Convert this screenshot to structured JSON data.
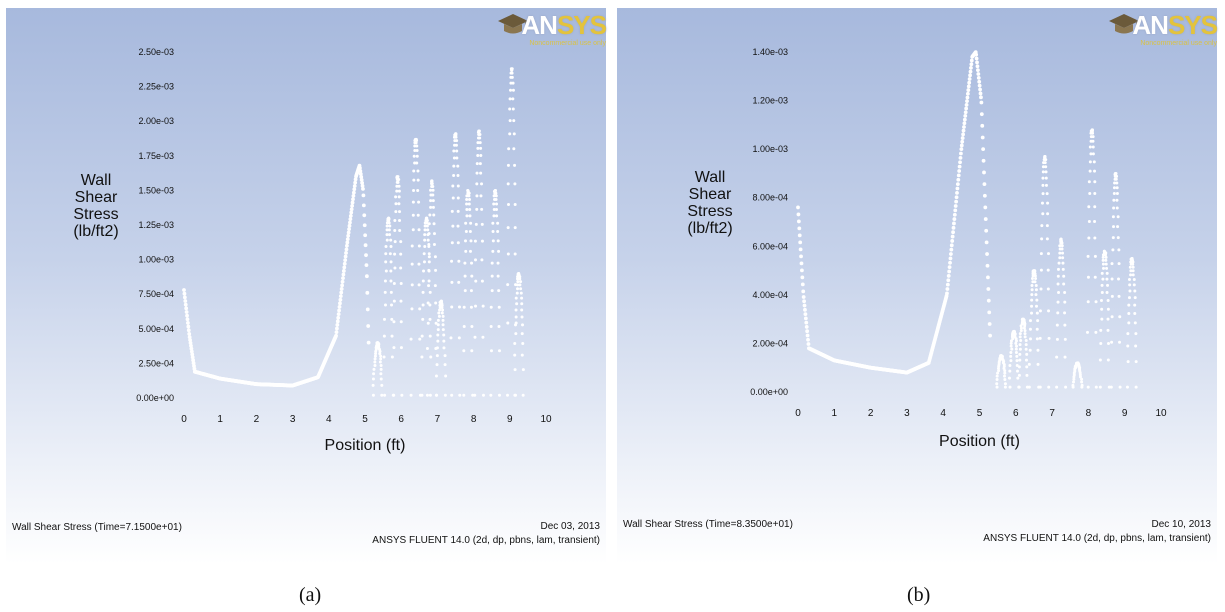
{
  "chart_data": [
    {
      "type": "scatter",
      "label": "(a)",
      "ylabel": "Wall\nShear\nStress\n(lb/ft2)",
      "xlabel": "Position (ft)",
      "x_ticks": [
        "0",
        "1",
        "2",
        "3",
        "4",
        "5",
        "6",
        "7",
        "8",
        "9",
        "10"
      ],
      "y_ticks": [
        "0.00e+00",
        "2.50e-04",
        "5.00e-04",
        "7.50e-04",
        "1.00e-03",
        "1.25e-03",
        "1.50e-03",
        "1.75e-03",
        "2.00e-03",
        "2.25e-03",
        "2.50e-03"
      ],
      "xlim": [
        0,
        10
      ],
      "ylim": [
        0,
        0.0025
      ],
      "series_profile": {
        "smooth": [
          [
            0,
            0.00078
          ],
          [
            0.15,
            0.00045
          ],
          [
            0.3,
            0.00019
          ],
          [
            1,
            0.00014
          ],
          [
            2,
            0.0001
          ],
          [
            3,
            9e-05
          ],
          [
            3.7,
            0.00015
          ],
          [
            4.2,
            0.00045
          ],
          [
            4.5,
            0.0011
          ],
          [
            4.75,
            0.0016
          ],
          [
            4.85,
            0.00168
          ],
          [
            4.95,
            0.0015
          ],
          [
            5.05,
            0.0009
          ],
          [
            5.1,
            0.0004
          ]
        ],
        "peaks": [
          [
            5.35,
            0.0004
          ],
          [
            5.65,
            0.0013
          ],
          [
            5.9,
            0.0016
          ],
          [
            6.4,
            0.00187
          ],
          [
            6.7,
            0.0013
          ],
          [
            6.85,
            0.00157
          ],
          [
            7.1,
            0.0007
          ],
          [
            7.5,
            0.00191
          ],
          [
            7.85,
            0.0015
          ],
          [
            8.15,
            0.00193
          ],
          [
            8.6,
            0.0015
          ],
          [
            9.05,
            0.00238
          ],
          [
            9.25,
            0.0009
          ]
        ]
      },
      "footer": {
        "left": "Wall Shear Stress  (Time=7.1500e+01)",
        "date": "Dec 03, 2013",
        "software": "ANSYS FLUENT 14.0 (2d, dp, pbns, lam, transient)"
      },
      "colors": {
        "marker": "#ffffff"
      }
    },
    {
      "type": "scatter",
      "label": "(b)",
      "ylabel": "Wall\nShear\nStress\n(lb/ft2)",
      "xlabel": "Position (ft)",
      "x_ticks": [
        "0",
        "1",
        "2",
        "3",
        "4",
        "5",
        "6",
        "7",
        "8",
        "9",
        "10"
      ],
      "y_ticks": [
        "0.00e+00",
        "2.00e-04",
        "4.00e-04",
        "6.00e-04",
        "8.00e-04",
        "1.00e-03",
        "1.20e-03",
        "1.40e-03"
      ],
      "xlim": [
        0,
        10
      ],
      "ylim": [
        0,
        0.0014
      ],
      "series_profile": {
        "smooth": [
          [
            0,
            0.00076
          ],
          [
            0.15,
            0.0004
          ],
          [
            0.3,
            0.00018
          ],
          [
            1,
            0.00013
          ],
          [
            2,
            0.0001
          ],
          [
            3,
            8e-05
          ],
          [
            3.6,
            0.00012
          ],
          [
            4.1,
            0.0004
          ],
          [
            4.5,
            0.001
          ],
          [
            4.8,
            0.00138
          ],
          [
            4.9,
            0.0014
          ],
          [
            5.05,
            0.0012
          ],
          [
            5.2,
            0.0006
          ],
          [
            5.3,
            0.0002
          ]
        ],
        "peaks": [
          [
            5.6,
            0.00015
          ],
          [
            5.95,
            0.00025
          ],
          [
            6.2,
            0.0003
          ],
          [
            6.5,
            0.0005
          ],
          [
            6.8,
            0.00097
          ],
          [
            7.25,
            0.00063
          ],
          [
            7.7,
            0.00012
          ],
          [
            8.1,
            0.00108
          ],
          [
            8.45,
            0.00058
          ],
          [
            8.75,
            0.0009
          ],
          [
            9.2,
            0.00055
          ]
        ]
      },
      "footer": {
        "left": "Wall Shear Stress  (Time=8.3500e+01)",
        "date": "Dec 10, 2013",
        "software": "ANSYS FLUENT 14.0 (2d, dp, pbns, lam, transient)"
      },
      "colors": {
        "marker": "#ffffff"
      }
    }
  ],
  "logo": {
    "brand_a": "AN",
    "brand_b": "SYS",
    "subtitle": "Noncommercial use only"
  }
}
